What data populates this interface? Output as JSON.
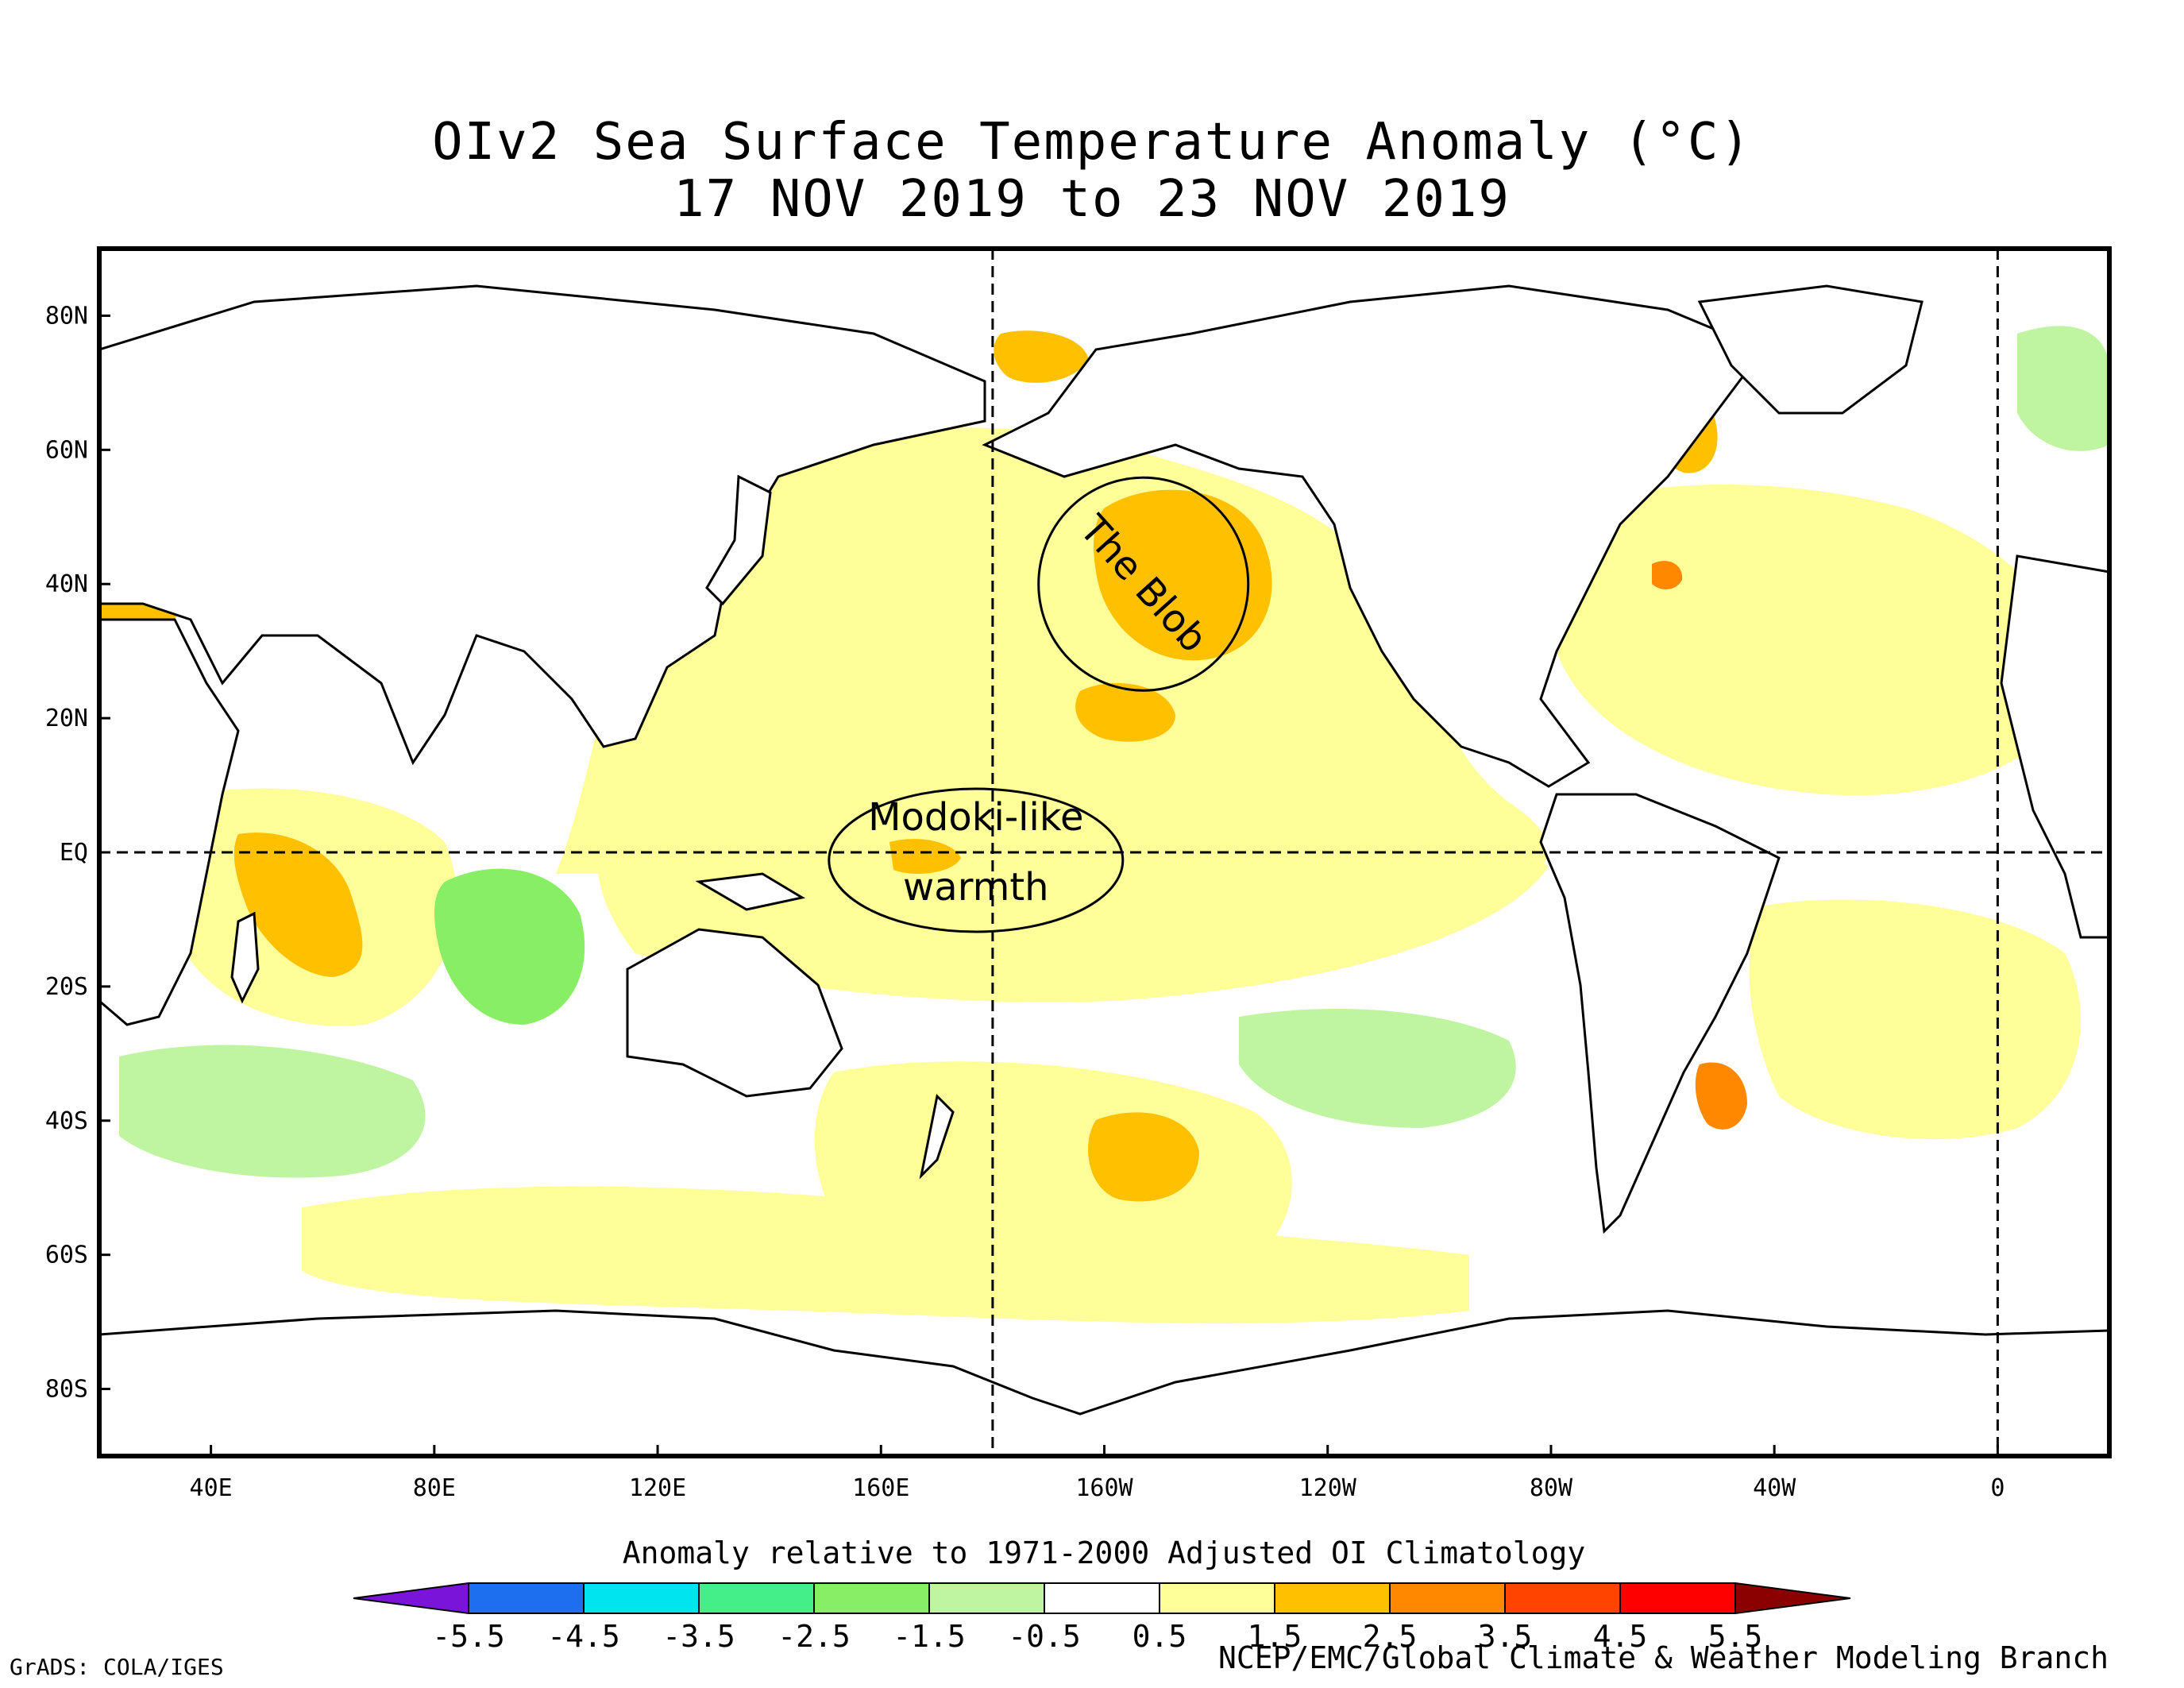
{
  "title": {
    "line1": "OIv2 Sea Surface Temperature Anomaly (°C)",
    "line2": "17 NOV 2019 to 23 NOV 2019"
  },
  "map": {
    "lat_labels": [
      {
        "lat": 80,
        "label": "80N"
      },
      {
        "lat": 60,
        "label": "60N"
      },
      {
        "lat": 40,
        "label": "40N"
      },
      {
        "lat": 20,
        "label": "20N"
      },
      {
        "lat": 0,
        "label": "EQ"
      },
      {
        "lat": -20,
        "label": "20S"
      },
      {
        "lat": -40,
        "label": "40S"
      },
      {
        "lat": -60,
        "label": "60S"
      },
      {
        "lat": -80,
        "label": "80S"
      }
    ],
    "lon_labels": [
      {
        "lon": 40,
        "label": "40E"
      },
      {
        "lon": 80,
        "label": "80E"
      },
      {
        "lon": 120,
        "label": "120E"
      },
      {
        "lon": 160,
        "label": "160E"
      },
      {
        "lon": 200,
        "label": "160W"
      },
      {
        "lon": 240,
        "label": "120W"
      },
      {
        "lon": 280,
        "label": "80W"
      },
      {
        "lon": 320,
        "label": "40W"
      },
      {
        "lon": 360,
        "label": "0"
      }
    ],
    "annotations": [
      {
        "text": "The Blob",
        "lon": 207,
        "lat": 40
      },
      {
        "text": "Modoki-like",
        "lon": 177,
        "lat": 4
      },
      {
        "text": "warmth",
        "lon": 177,
        "lat": -4
      }
    ]
  },
  "colorbar": {
    "caption": "Anomaly relative to 1971-2000 Adjusted OI Climatology",
    "boundaries": [
      "-5.5",
      "-4.5",
      "-3.5",
      "-2.5",
      "-1.5",
      "-0.5",
      "0.5",
      "1.5",
      "2.5",
      "3.5",
      "4.5",
      "5.5"
    ],
    "colors": [
      "#7a14d8",
      "#1e6ef0",
      "#00e4f0",
      "#44ee88",
      "#88ee66",
      "#bff5a0",
      "#ffffff",
      "#ffff99",
      "#ffc000",
      "#ff8800",
      "#ff4400",
      "#ff0000",
      "#8b0000"
    ]
  },
  "credits": {
    "left": "GrADS: COLA/IGES",
    "right": "NCEP/EMC/Global Climate & Weather Modeling Branch"
  }
}
